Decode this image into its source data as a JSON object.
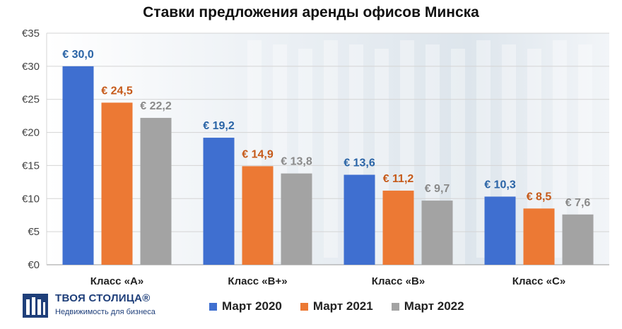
{
  "chart_data": {
    "type": "bar",
    "title": "Ставки предложения аренды офисов Минска",
    "categories": [
      "Класс «А»",
      "Класс «В+»",
      "Класс «В»",
      "Класс «С»"
    ],
    "series": [
      {
        "name": "Март 2020",
        "color": "#3f6fd0",
        "label_color": "#2a64a6",
        "values": [
          30.0,
          19.2,
          13.6,
          10.3
        ],
        "labels": [
          "€ 30,0",
          "€ 19,2",
          "€ 13,6",
          "€ 10,3"
        ]
      },
      {
        "name": "Март 2021",
        "color": "#ec7934",
        "label_color": "#c65a1a",
        "values": [
          24.5,
          14.9,
          11.2,
          8.5
        ],
        "labels": [
          "€ 24,5",
          "€ 14,9",
          "€ 11,2",
          "€ 8,5"
        ]
      },
      {
        "name": "Март 2022",
        "color": "#a3a3a3",
        "label_color": "#8a8a8a",
        "values": [
          22.2,
          13.8,
          9.7,
          7.6
        ],
        "labels": [
          "€ 22,2",
          "€ 13,8",
          "€ 9,7",
          "€ 7,6"
        ]
      }
    ],
    "ylim": [
      0,
      35
    ],
    "yticks": [
      0,
      5,
      10,
      15,
      20,
      25,
      30,
      35
    ],
    "ytick_labels": [
      "€0",
      "€5",
      "€10",
      "€15",
      "€20",
      "€25",
      "€30",
      "€35"
    ],
    "xlabel": "",
    "ylabel": "",
    "grid": true,
    "legend_position": "bottom"
  },
  "logo": {
    "name": "ТВОЯ СТОЛИЦА®",
    "tagline": "Недвижимость для бизнеса",
    "color": "#1f3f7a"
  }
}
